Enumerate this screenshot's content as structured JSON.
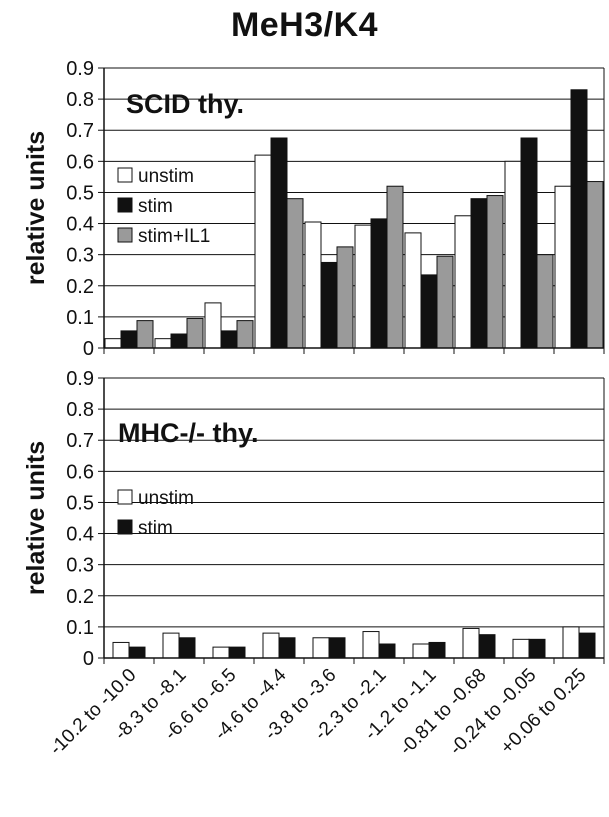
{
  "title": "MeH3/K4",
  "colors": {
    "unstim": "#ffffff",
    "stim": "#111111",
    "stim_il1": "#9a9a9a"
  },
  "chart_data": [
    {
      "type": "bar",
      "panel_label": "SCID thy.",
      "ylabel": "relative units",
      "ylim": [
        0,
        0.9
      ],
      "yticks": [
        "0",
        "0.1",
        "0.2",
        "0.3",
        "0.4",
        "0.5",
        "0.6",
        "0.7",
        "0.8",
        "0.9"
      ],
      "grid": true,
      "legend_position": "left",
      "categories": [
        "-10.2 to -10.0",
        "-8.3 to -8.1",
        "-6.6 to -6.5",
        "-4.6 to -4.4",
        "-3.8 to -3.6",
        "-2.3 to -2.1",
        "-1.2 to -1.1",
        "-0.81 to -0.68",
        "-0.24 to -0.05",
        "+0.06 to 0.25"
      ],
      "series": [
        {
          "name": "unstim",
          "values": [
            0.03,
            0.03,
            0.145,
            0.62,
            0.405,
            0.395,
            0.37,
            0.425,
            0.6,
            0.52
          ]
        },
        {
          "name": "stim",
          "values": [
            0.055,
            0.045,
            0.055,
            0.675,
            0.275,
            0.415,
            0.235,
            0.48,
            0.675,
            0.83
          ]
        },
        {
          "name": "stim+IL1",
          "values": [
            0.088,
            0.095,
            0.088,
            0.48,
            0.325,
            0.52,
            0.295,
            0.49,
            0.3,
            0.535
          ]
        }
      ]
    },
    {
      "type": "bar",
      "panel_label": "MHC-/- thy.",
      "ylabel": "relative units",
      "ylim": [
        0,
        0.9
      ],
      "yticks": [
        "0",
        "0.1",
        "0.2",
        "0.3",
        "0.4",
        "0.5",
        "0.6",
        "0.7",
        "0.8",
        "0.9"
      ],
      "grid": true,
      "legend_position": "left",
      "categories": [
        "-10.2 to -10.0",
        "-8.3 to -8.1",
        "-6.6 to -6.5",
        "-4.6 to -4.4",
        "-3.8 to -3.6",
        "-2.3 to -2.1",
        "-1.2 to -1.1",
        "-0.81 to -0.68",
        "-0.24 to -0.05",
        "+0.06 to 0.25"
      ],
      "series": [
        {
          "name": "unstim",
          "values": [
            0.05,
            0.08,
            0.035,
            0.08,
            0.065,
            0.085,
            0.045,
            0.095,
            0.06,
            0.1
          ]
        },
        {
          "name": "stim",
          "values": [
            0.035,
            0.065,
            0.035,
            0.065,
            0.065,
            0.045,
            0.05,
            0.075,
            0.06,
            0.08
          ]
        }
      ]
    }
  ]
}
